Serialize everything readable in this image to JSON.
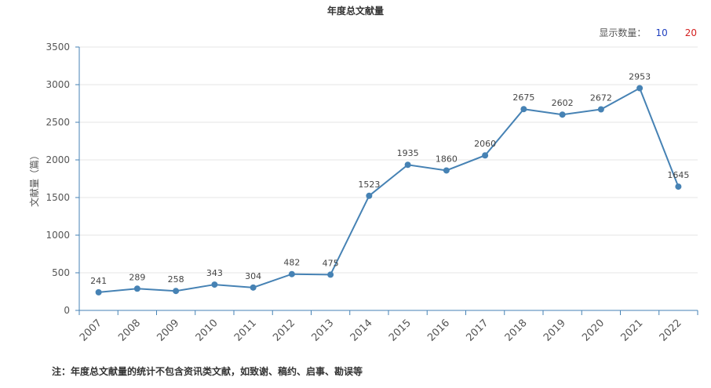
{
  "title": "年度总文献量",
  "count_selector": {
    "label": "显示数量：",
    "options": [
      "10",
      "20"
    ]
  },
  "footnote": "注：年度总文献量的统计不包含资讯类文献，如致谢、稿约、启事、勘误等",
  "colors": {
    "line": "#4682b4",
    "point": "#4682b4",
    "grid": "#e6e6e6",
    "axis": "#4682b4",
    "text": "#555555"
  },
  "chart_data": {
    "type": "line",
    "title": "年度总文献量",
    "xlabel": "",
    "ylabel": "文献量（篇）",
    "x": [
      "2007",
      "2008",
      "2009",
      "2010",
      "2011",
      "2012",
      "2013",
      "2014",
      "2015",
      "2016",
      "2017",
      "2018",
      "2019",
      "2020",
      "2021",
      "2022"
    ],
    "values": [
      241,
      289,
      258,
      343,
      304,
      482,
      475,
      1523,
      1935,
      1860,
      2060,
      2675,
      2602,
      2672,
      2953,
      1645
    ],
    "ylim": [
      0,
      3500
    ],
    "yticks": [
      0,
      500,
      1000,
      1500,
      2000,
      2500,
      3000,
      3500
    ],
    "grid": true,
    "data_labels": true
  }
}
